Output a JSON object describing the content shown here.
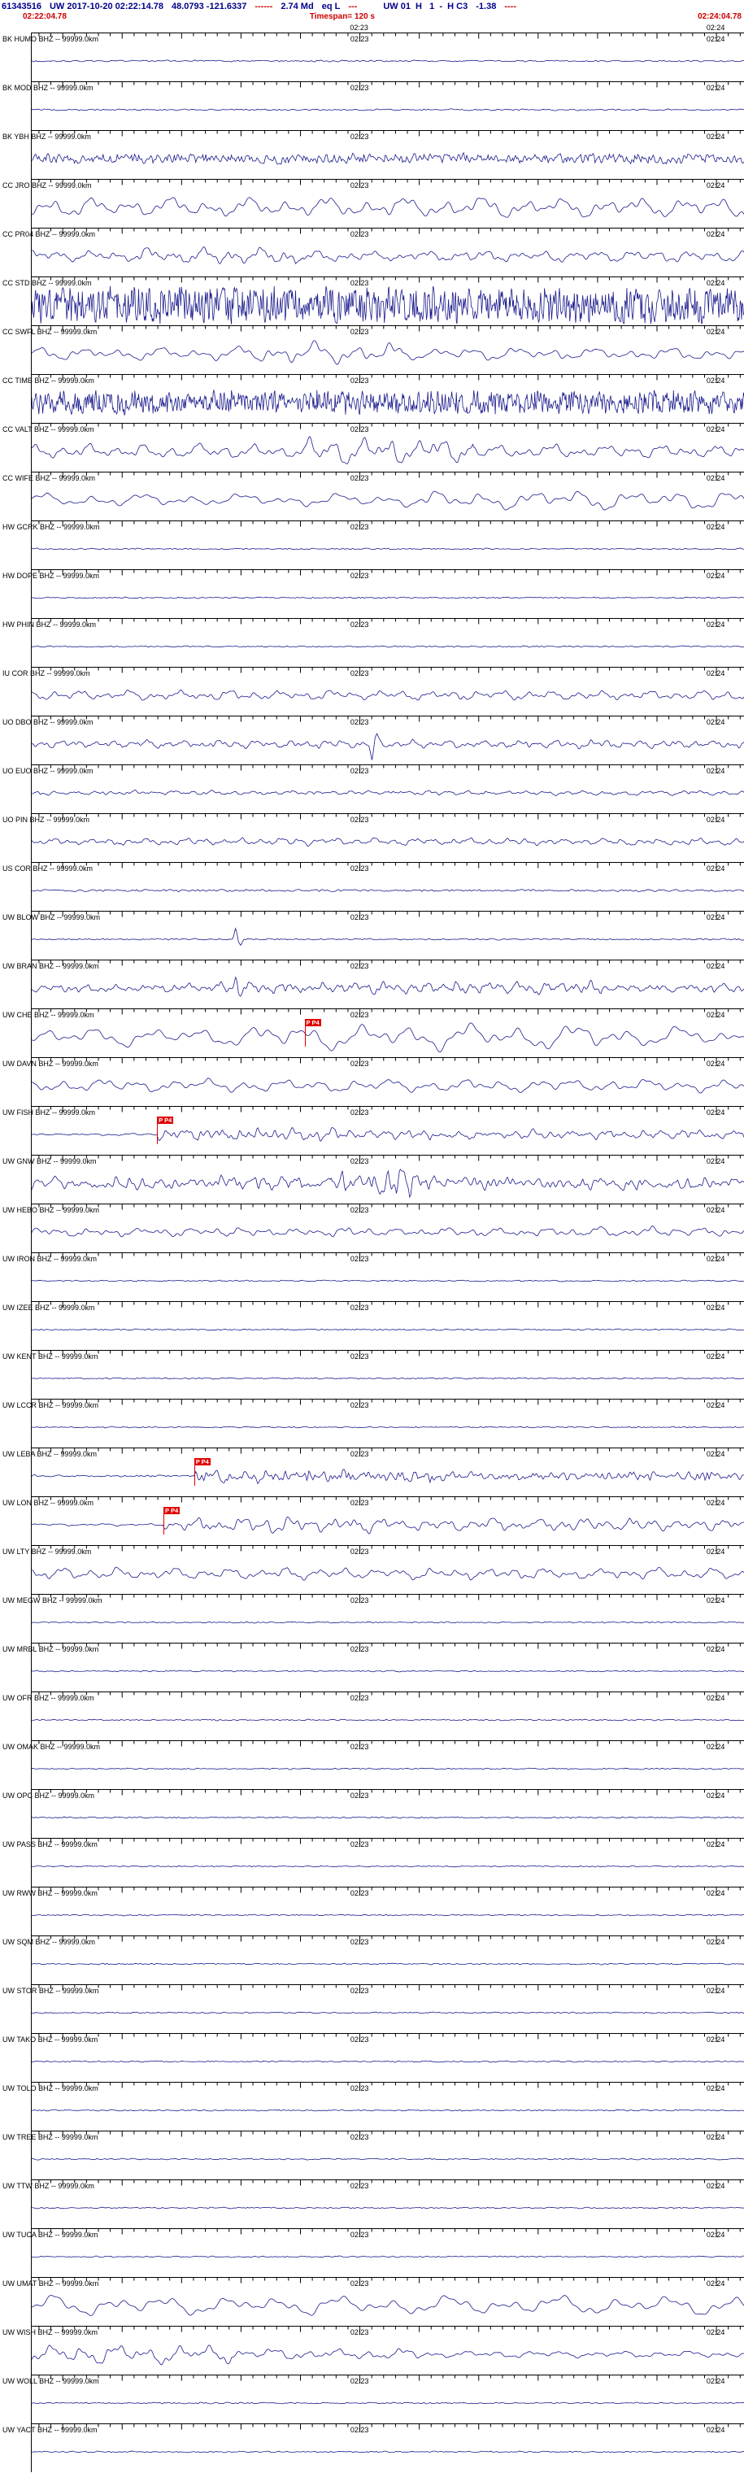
{
  "header": {
    "line1": {
      "event_id": "61343516",
      "origin": "UW 2017-10-20 02:22:14.78",
      "coords": "48.0793 -121.6337",
      "dash1": "------",
      "magnitude": "2.74 Md",
      "event_type": "eq L",
      "dash2": "---",
      "source": "UW 01  H   1  -  H C3",
      "residual": "-1.38",
      "dash3": "----"
    },
    "line2": {
      "start_time": "02:22:04.78",
      "timespan": "Timespan= 120 s",
      "end_time": "02:24:04.78"
    }
  },
  "timeline": {
    "label_mid": "02:23",
    "label_end": "02:24",
    "mid_frac": 0.4602,
    "end_frac": 0.9602,
    "timespan_seconds": 120
  },
  "colors": {
    "trace": "#1a1a8c",
    "header1": "#00008b",
    "header2": "#cc0000",
    "pick": "#e00000",
    "rule": "#000000",
    "background": "#ffffff"
  },
  "rows": [
    {
      "label": "BK HUMO BHZ -- 99999.0km",
      "wave": {
        "a": 1.1,
        "f": 60,
        "hf": 0.6
      }
    },
    {
      "label": "BK MOD BHZ -- 99999.0km",
      "wave": {
        "a": 1.0,
        "f": 60,
        "hf": 0.6
      }
    },
    {
      "label": "BK YBH BHZ -- 99999.0km",
      "wave": {
        "a": 6,
        "f": 42,
        "hf": 0.75,
        "seg": 500
      }
    },
    {
      "label": "CC JRO BHZ -- 99999.0km",
      "wave": {
        "a": 14,
        "f": 20,
        "hf": 0.1
      }
    },
    {
      "label": "CC PR04 BHZ -- 99999.0km",
      "wave": {
        "a": 8,
        "f": 26,
        "hf": 0.15,
        "env": [
          [
            0.15,
            0.38,
            1.5
          ]
        ],
        "spikes": [
          [
            0.37,
            -10
          ]
        ]
      }
    },
    {
      "label": "CC STD BHZ -- 99999.0km",
      "wave": {
        "a": 17,
        "f": 60,
        "hf": 1,
        "seg": 900
      }
    },
    {
      "label": "CC SWFL BHZ -- 99999.0km",
      "wave": {
        "a": 9,
        "f": 20,
        "hf": 0.1,
        "env": [
          [
            0.3,
            0.52,
            1.7
          ]
        ]
      }
    },
    {
      "label": "CC TIMB BHZ -- 99999.0km",
      "wave": {
        "a": 11,
        "f": 60,
        "hf": 1,
        "seg": 900
      }
    },
    {
      "label": "CC VALT BHZ -- 99999.0km",
      "wave": {
        "a": 10,
        "f": 24,
        "hf": 0.15,
        "env": [
          [
            0.38,
            0.62,
            1.9
          ]
        ]
      }
    },
    {
      "label": "CC WIFE BHZ -- 99999.0km",
      "wave": {
        "a": 9,
        "f": 16,
        "hf": 0.1,
        "env": [
          [
            0.55,
            1,
            1.6
          ]
        ]
      }
    },
    {
      "label": "HW GCRK BHZ -- 99999.0km",
      "wave": {
        "a": 0.9,
        "f": 60,
        "hf": 0.6
      }
    },
    {
      "label": "HW DOPE BHZ -- 99999.0km",
      "wave": {
        "a": 0.9,
        "f": 60,
        "hf": 0.6
      }
    },
    {
      "label": "HW PHIN BHZ -- 99999.0km",
      "wave": {
        "a": 0.9,
        "f": 60,
        "hf": 0.6
      }
    },
    {
      "label": "IU COR BHZ -- 99999.0km",
      "wave": {
        "a": 7,
        "f": 30,
        "hf": 0.15
      }
    },
    {
      "label": "UO DBO BHZ -- 99999.0km",
      "wave": {
        "a": 6,
        "f": 38,
        "hf": 0.2,
        "spikes": [
          [
            0.477,
            -22
          ]
        ]
      }
    },
    {
      "label": "UO EUO BHZ -- 99999.0km",
      "wave": {
        "a": 3.5,
        "f": 40,
        "hf": 0.3
      }
    },
    {
      "label": "UO PIN BHZ -- 99999.0km",
      "wave": {
        "a": 5,
        "f": 36,
        "hf": 0.2
      }
    },
    {
      "label": "US COR BHZ -- 99999.0km",
      "wave": {
        "a": 1.4,
        "f": 60,
        "hf": 0.6
      }
    },
    {
      "label": "UW BLOW BHZ -- 99999.0km",
      "wave": {
        "a": 1.0,
        "f": 60,
        "hf": 0.6,
        "spikes": [
          [
            0.286,
            14
          ]
        ]
      }
    },
    {
      "label": "UW BRAN BHZ -- 99999.0km",
      "wave": {
        "a": 6,
        "f": 46,
        "hf": 0.25,
        "env": [
          [
            0.25,
            0.8,
            1.5
          ]
        ],
        "spikes": [
          [
            0.286,
            12
          ]
        ]
      }
    },
    {
      "label": "UW CHE BHZ -- 99999.0km",
      "wave": {
        "a": 13,
        "f": 14,
        "hf": 0.05,
        "env": [
          [
            0.3,
            0.85,
            1.4
          ]
        ]
      },
      "picks": [
        {
          "x": 0.383,
          "label": "P P4"
        }
      ]
    },
    {
      "label": "UW DAVN BHZ -- 99999.0km",
      "wave": {
        "a": 9,
        "f": 18,
        "hf": 0.1
      }
    },
    {
      "label": "UW FISH BHZ -- 99999.0km",
      "wave": {
        "a": 7,
        "f": 40,
        "hf": 0.3,
        "env": [
          [
            0,
            0.176,
            0.25
          ],
          [
            0.176,
            0.45,
            1.4
          ]
        ]
      },
      "picks": [
        {
          "x": 0.176,
          "label": "P P4"
        }
      ]
    },
    {
      "label": "UW GNW BHZ -- 99999.0km",
      "wave": {
        "a": 9,
        "f": 44,
        "hf": 0.45,
        "env": [
          [
            0.42,
            0.56,
            2.2
          ]
        ]
      }
    },
    {
      "label": "UW HEBO BHZ -- 99999.0km",
      "wave": {
        "a": 7,
        "f": 28,
        "hf": 0.2
      }
    },
    {
      "label": "UW IRON BHZ -- 99999.0km",
      "wave": {
        "a": 0.9,
        "f": 60,
        "hf": 0.6
      }
    },
    {
      "label": "UW IZEE BHZ -- 99999.0km",
      "wave": {
        "a": 0.9,
        "f": 60,
        "hf": 0.6
      }
    },
    {
      "label": "UW KENT BHZ -- 99999.0km",
      "wave": {
        "a": 0.9,
        "f": 60,
        "hf": 0.6
      }
    },
    {
      "label": "UW LCCR BHZ -- 99999.0km",
      "wave": {
        "a": 0.9,
        "f": 60,
        "hf": 0.6
      }
    },
    {
      "label": "UW LEBA BHZ -- 99999.0km",
      "wave": {
        "a": 6,
        "f": 60,
        "hf": 0.55,
        "env": [
          [
            0,
            0.228,
            0.25
          ],
          [
            0.228,
            0.6,
            1.3
          ]
        ]
      },
      "picks": [
        {
          "x": 0.228,
          "label": "P P4"
        }
      ]
    },
    {
      "label": "UW LON BHZ -- 99999.0km",
      "wave": {
        "a": 9,
        "f": 30,
        "hf": 0.2,
        "env": [
          [
            0,
            0.185,
            0.2
          ],
          [
            0.185,
            0.5,
            1.4
          ]
        ]
      },
      "picks": [
        {
          "x": 0.185,
          "label": "P P4"
        }
      ]
    },
    {
      "label": "UW LTY BHZ -- 99999.0km",
      "wave": {
        "a": 8,
        "f": 26,
        "hf": 0.15
      }
    },
    {
      "label": "UW MEGW BHZ -- 99999.0km",
      "wave": {
        "a": 0.9,
        "f": 60,
        "hf": 0.6
      }
    },
    {
      "label": "UW MRBL BHZ -- 99999.0km",
      "wave": {
        "a": 0.9,
        "f": 60,
        "hf": 0.6
      }
    },
    {
      "label": "UW OFR BHZ -- 99999.0km",
      "wave": {
        "a": 0.9,
        "f": 60,
        "hf": 0.6
      }
    },
    {
      "label": "UW OMAK BHZ -- 99999.0km",
      "wave": {
        "a": 0.9,
        "f": 60,
        "hf": 0.6
      }
    },
    {
      "label": "UW OPC BHZ -- 99999.0km",
      "wave": {
        "a": 0.9,
        "f": 60,
        "hf": 0.6
      }
    },
    {
      "label": "UW PASS BHZ -- 99999.0km",
      "wave": {
        "a": 0.9,
        "f": 60,
        "hf": 0.6
      }
    },
    {
      "label": "UW RWW BHZ -- 99999.0km",
      "wave": {
        "a": 0.9,
        "f": 60,
        "hf": 0.6
      }
    },
    {
      "label": "UW SQM BHZ -- 99999.0km",
      "wave": {
        "a": 0.9,
        "f": 60,
        "hf": 0.6
      }
    },
    {
      "label": "UW STOR BHZ -- 99999.0km",
      "wave": {
        "a": 0.9,
        "f": 60,
        "hf": 0.6
      }
    },
    {
      "label": "UW TAKO BHZ -- 99999.0km",
      "wave": {
        "a": 0.9,
        "f": 60,
        "hf": 0.6
      }
    },
    {
      "label": "UW TOLO BHZ -- 99999.0km",
      "wave": {
        "a": 0.9,
        "f": 60,
        "hf": 0.6
      }
    },
    {
      "label": "UW TREE BHZ -- 99999.0km",
      "wave": {
        "a": 0.9,
        "f": 60,
        "hf": 0.6
      }
    },
    {
      "label": "UW TTW BHZ -- 99999.0km",
      "wave": {
        "a": 0.9,
        "f": 60,
        "hf": 0.6
      }
    },
    {
      "label": "UW TUCA BHZ -- 99999.0km",
      "wave": {
        "a": 0.9,
        "f": 60,
        "hf": 0.6
      }
    },
    {
      "label": "UW UMAT BHZ -- 99999.0km",
      "wave": {
        "a": 13,
        "f": 14,
        "hf": 0.05
      }
    },
    {
      "label": "UW WISH BHZ -- 99999.0km",
      "wave": {
        "a": 8,
        "f": 22,
        "hf": 0.1,
        "env": [
          [
            0,
            0.28,
            1.7
          ],
          [
            0.55,
            1,
            0.6
          ]
        ]
      }
    },
    {
      "label": "UW WOLL BHZ -- 99999.0km",
      "wave": {
        "a": 0.9,
        "f": 60,
        "hf": 0.6
      }
    },
    {
      "label": "UW YACT BHZ -- 99999.0km",
      "wave": {
        "a": 0.9,
        "f": 60,
        "hf": 0.6
      }
    }
  ]
}
